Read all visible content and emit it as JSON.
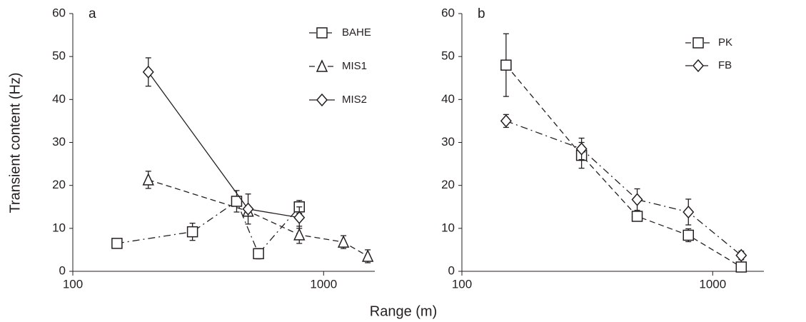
{
  "xlabel": "Range (m)",
  "ylabel": "Transient content (Hz)",
  "chart_data": [
    {
      "type": "line",
      "title": "a",
      "xscale": "log",
      "xlim": [
        100,
        1600
      ],
      "xticks": [
        100,
        1000
      ],
      "ylim": [
        0,
        60
      ],
      "yticks": [
        0,
        10,
        20,
        30,
        40,
        50,
        60
      ],
      "legend": "upper right",
      "series": [
        {
          "name": "BAHE",
          "color": "#231f20",
          "marker": "square",
          "linestyle": "dashdot",
          "x": [
            150,
            300,
            450,
            550,
            800
          ],
          "values": [
            6.5,
            9.2,
            16.3,
            4.1,
            15
          ],
          "errors": [
            1,
            2,
            2.5,
            1.2,
            1.5
          ]
        },
        {
          "name": "MIS1",
          "color": "#231f20",
          "marker": "triangle",
          "linestyle": "dashed",
          "x": [
            200,
            500,
            800,
            1200,
            1500
          ],
          "values": [
            21.3,
            14,
            8.5,
            6.8,
            3.5
          ],
          "errors": [
            2,
            1,
            2,
            1.5,
            1.5
          ]
        },
        {
          "name": "MIS2",
          "color": "#231f20",
          "marker": "diamond",
          "linestyle": "solid",
          "x": [
            200,
            500,
            800
          ],
          "values": [
            46.4,
            14.5,
            12.5
          ],
          "errors": [
            3.3,
            3.5,
            2.5
          ]
        }
      ]
    },
    {
      "type": "line",
      "title": "b",
      "xscale": "log",
      "xlim": [
        100,
        1600
      ],
      "xticks": [
        100,
        1000
      ],
      "ylim": [
        0,
        60
      ],
      "yticks": [
        0,
        10,
        20,
        30,
        40,
        50,
        60
      ],
      "legend": "upper right",
      "series": [
        {
          "name": "PK",
          "color": "#231f20",
          "marker": "square",
          "linestyle": "dashed",
          "x": [
            150,
            300,
            500,
            800,
            1300
          ],
          "values": [
            48,
            27,
            12.8,
            8.4,
            1
          ],
          "errors": [
            7.3,
            3,
            1,
            1.5,
            0.8
          ]
        },
        {
          "name": "FB",
          "color": "#231f20",
          "marker": "diamond",
          "linestyle": "dashdot",
          "x": [
            150,
            300,
            500,
            800,
            1300
          ],
          "values": [
            35,
            28.5,
            16.7,
            13.8,
            3.7
          ],
          "errors": [
            1.5,
            2.5,
            2.5,
            3,
            1
          ]
        }
      ]
    }
  ]
}
